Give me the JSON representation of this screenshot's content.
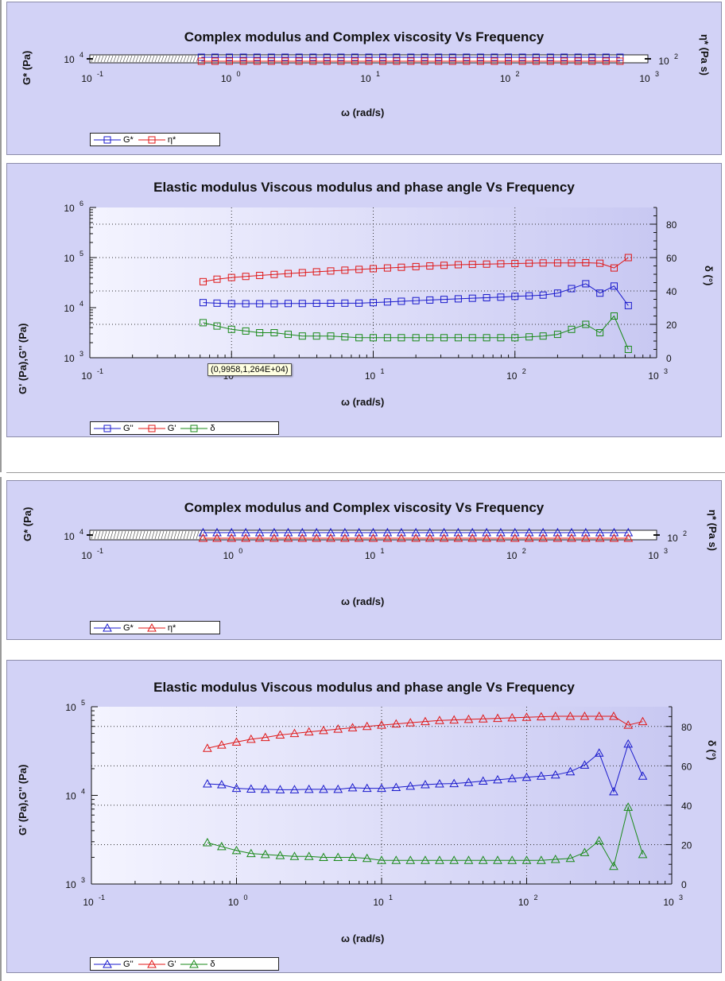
{
  "panels": [
    {
      "title": "Complex modulus and Complex viscosity Vs Frequency",
      "xlabel": "ω (rad/s)",
      "ylabel": "G* (Pa)",
      "y2label": "η* (Pa s)"
    },
    {
      "title": "Elastic modulus Viscous modulus and phase angle Vs Frequency",
      "xlabel": "ω (rad/s)",
      "ylabel": "G' (Pa),G'' (Pa)",
      "y2label": "δ (°)"
    },
    {
      "title": "Complex modulus and Complex viscosity Vs Frequency",
      "xlabel": "ω (rad/s)",
      "ylabel": "G* (Pa)",
      "y2label": "η* (Pa s)"
    },
    {
      "title": "Elastic modulus Viscous modulus and phase angle Vs Frequency",
      "xlabel": "ω (rad/s)",
      "ylabel": "G' (Pa),G'' (Pa)",
      "y2label": "δ (°)"
    }
  ],
  "tooltip": "(0,9958,1,264E+04)",
  "legends": [
    [
      "G*",
      "η*"
    ],
    [
      "G''",
      "G'",
      "δ"
    ],
    [
      "G*",
      "η*"
    ],
    [
      "G''",
      "G'",
      "δ"
    ]
  ],
  "colors": {
    "blue": "#1a1acc",
    "red": "#e01818",
    "green": "#1a8a1a",
    "panel_bg": "#d2d2f6"
  },
  "chart_data": [
    {
      "type": "line",
      "title": "Complex modulus and Complex viscosity Vs Frequency",
      "xlabel": "ω (rad/s)",
      "ylabel": "G* (Pa)",
      "y2label": "η* (Pa s)",
      "x_scale": "log",
      "xlim": [
        0.1,
        1000
      ],
      "x_ticks": [
        "10^-1",
        "10^0",
        "10^1",
        "10^2",
        "10^3"
      ],
      "y_ticks": [
        "10^4"
      ],
      "y2_ticks": [
        "10^2"
      ],
      "marker": "square",
      "series": [
        {
          "name": "G*",
          "x": [
            0.63,
            0.79,
            1.0,
            1.26,
            1.58,
            2.0,
            2.51,
            3.16,
            3.98,
            5.01,
            6.31,
            7.94,
            10,
            12.6,
            15.8,
            20,
            25.1,
            31.6,
            39.8,
            50.1,
            63.1,
            79.4,
            100,
            126,
            158,
            200,
            251,
            316,
            398,
            501,
            631
          ],
          "values_note": "flat band near 1e4"
        },
        {
          "name": "η*",
          "x": [
            0.63,
            0.79,
            1.0,
            1.26,
            1.58,
            2.0,
            2.51,
            3.16,
            3.98,
            5.01,
            6.31,
            7.94,
            10,
            12.6,
            15.8,
            20,
            25.1,
            31.6,
            39.8,
            50.1,
            63.1,
            79.4,
            100,
            126,
            158,
            200,
            251,
            316,
            398,
            501,
            631
          ],
          "values_note": "flat band near 1e2"
        }
      ]
    },
    {
      "type": "line",
      "title": "Elastic modulus Viscous modulus and phase angle Vs Frequency",
      "xlabel": "ω (rad/s)",
      "ylabel": "G' (Pa),G'' (Pa)",
      "y2label": "δ (°)",
      "x_scale": "log",
      "xlim": [
        0.1,
        1000
      ],
      "y_scale": "log",
      "ylim": [
        1000,
        1000000
      ],
      "y2lim": [
        0,
        90
      ],
      "x_ticks": [
        "10^-1",
        "10^0",
        "10^1",
        "10^2",
        "10^3"
      ],
      "y_ticks": [
        "10^3",
        "10^4",
        "10^5",
        "10^6"
      ],
      "y2_ticks": [
        0,
        20,
        40,
        60,
        80
      ],
      "marker": "square",
      "x": [
        0.63,
        0.79,
        1.0,
        1.26,
        1.58,
        2.0,
        2.51,
        3.16,
        3.98,
        5.01,
        6.31,
        7.94,
        10,
        12.6,
        15.8,
        20,
        25.1,
        31.6,
        39.8,
        50.1,
        63.1,
        79.4,
        100,
        126,
        158,
        200,
        251,
        316,
        398,
        501,
        631
      ],
      "series": [
        {
          "name": "G''",
          "axis": "left",
          "values": [
            12600,
            12300,
            12000,
            12000,
            12000,
            12000,
            12100,
            12100,
            12200,
            12200,
            12300,
            12300,
            12600,
            13000,
            13400,
            13800,
            14200,
            14600,
            15000,
            15400,
            15800,
            16200,
            16800,
            17200,
            17800,
            19500,
            24000,
            30000,
            19500,
            27000,
            11000
          ]
        },
        {
          "name": "G'",
          "axis": "left",
          "values": [
            33000,
            37000,
            40000,
            42000,
            44000,
            46000,
            48000,
            50000,
            52000,
            54000,
            56000,
            58000,
            60000,
            62000,
            64000,
            66000,
            68000,
            70000,
            72000,
            73000,
            74000,
            75000,
            76000,
            77000,
            78000,
            78000,
            78000,
            79000,
            77000,
            62000,
            100000
          ]
        },
        {
          "name": "δ",
          "axis": "right",
          "values": [
            21,
            19,
            17,
            16,
            15,
            15,
            14,
            13,
            13,
            13,
            12.5,
            12,
            12,
            12,
            12,
            12,
            12,
            12,
            12,
            12,
            12,
            12,
            12,
            12.5,
            13,
            14,
            17,
            20,
            15,
            25,
            5
          ]
        }
      ]
    },
    {
      "type": "line",
      "title": "Complex modulus and Complex viscosity Vs Frequency",
      "xlabel": "ω (rad/s)",
      "ylabel": "G* (Pa)",
      "y2label": "η* (Pa s)",
      "x_scale": "log",
      "xlim": [
        0.1,
        1000
      ],
      "x_ticks": [
        "10^-1",
        "10^0",
        "10^1",
        "10^2",
        "10^3"
      ],
      "y_ticks": [
        "10^4"
      ],
      "y2_ticks": [
        "10^2"
      ],
      "marker": "triangle",
      "series": [
        {
          "name": "G*",
          "x": [
            0.63,
            0.79,
            1.0,
            1.26,
            1.58,
            2.0,
            2.51,
            3.16,
            3.98,
            5.01,
            6.31,
            7.94,
            10,
            12.6,
            15.8,
            20,
            25.1,
            31.6,
            39.8,
            50.1,
            63.1,
            79.4,
            100,
            126,
            158,
            200,
            251,
            316,
            398,
            501,
            631
          ],
          "values_note": "flat band near 1e4"
        },
        {
          "name": "η*",
          "x": [
            0.63,
            0.79,
            1.0,
            1.26,
            1.58,
            2.0,
            2.51,
            3.16,
            3.98,
            5.01,
            6.31,
            7.94,
            10,
            12.6,
            15.8,
            20,
            25.1,
            31.6,
            39.8,
            50.1,
            63.1,
            79.4,
            100,
            126,
            158,
            200,
            251,
            316,
            398,
            501,
            631
          ],
          "values_note": "flat band near 1e2"
        }
      ]
    },
    {
      "type": "line",
      "title": "Elastic modulus Viscous modulus and phase angle Vs Frequency",
      "xlabel": "ω (rad/s)",
      "ylabel": "G' (Pa),G'' (Pa)",
      "y2label": "δ (°)",
      "x_scale": "log",
      "xlim": [
        0.1,
        1000
      ],
      "y_scale": "log",
      "ylim": [
        1000,
        100000
      ],
      "y2lim": [
        0,
        90
      ],
      "x_ticks": [
        "10^-1",
        "10^0",
        "10^1",
        "10^2",
        "10^3"
      ],
      "y_ticks": [
        "10^3",
        "10^4",
        "10^5"
      ],
      "y2_ticks": [
        0,
        20,
        40,
        60,
        80
      ],
      "marker": "triangle",
      "x": [
        0.63,
        0.79,
        1.0,
        1.26,
        1.58,
        2.0,
        2.51,
        3.16,
        3.98,
        5.01,
        6.31,
        7.94,
        10,
        12.6,
        15.8,
        20,
        25.1,
        31.6,
        39.8,
        50.1,
        63.1,
        79.4,
        100,
        126,
        158,
        200,
        251,
        316,
        398,
        501,
        631
      ],
      "series": [
        {
          "name": "G''",
          "axis": "left",
          "values": [
            13500,
            13200,
            12000,
            11800,
            11700,
            11600,
            11600,
            11700,
            11700,
            11700,
            12200,
            12000,
            12000,
            12300,
            12700,
            13200,
            13500,
            13600,
            14000,
            14500,
            15000,
            15500,
            16000,
            16500,
            17000,
            18500,
            22000,
            30000,
            11000,
            38000,
            16500
          ]
        },
        {
          "name": "G'",
          "axis": "left",
          "values": [
            34000,
            37000,
            40000,
            43000,
            45000,
            48000,
            50000,
            52000,
            54000,
            56000,
            58000,
            60000,
            62000,
            64000,
            66000,
            68000,
            70000,
            71000,
            72000,
            73000,
            74000,
            75000,
            76000,
            77000,
            78000,
            78000,
            78000,
            78000,
            78000,
            62000,
            68000
          ]
        },
        {
          "name": "δ",
          "axis": "right",
          "values": [
            21,
            19,
            17,
            15.5,
            15,
            14.5,
            14,
            14,
            13.5,
            13.5,
            13.5,
            13,
            12,
            12,
            12,
            12,
            12,
            12,
            12,
            12,
            12,
            12,
            12,
            12,
            12.5,
            13,
            16,
            22,
            9,
            39,
            15
          ]
        }
      ]
    }
  ]
}
